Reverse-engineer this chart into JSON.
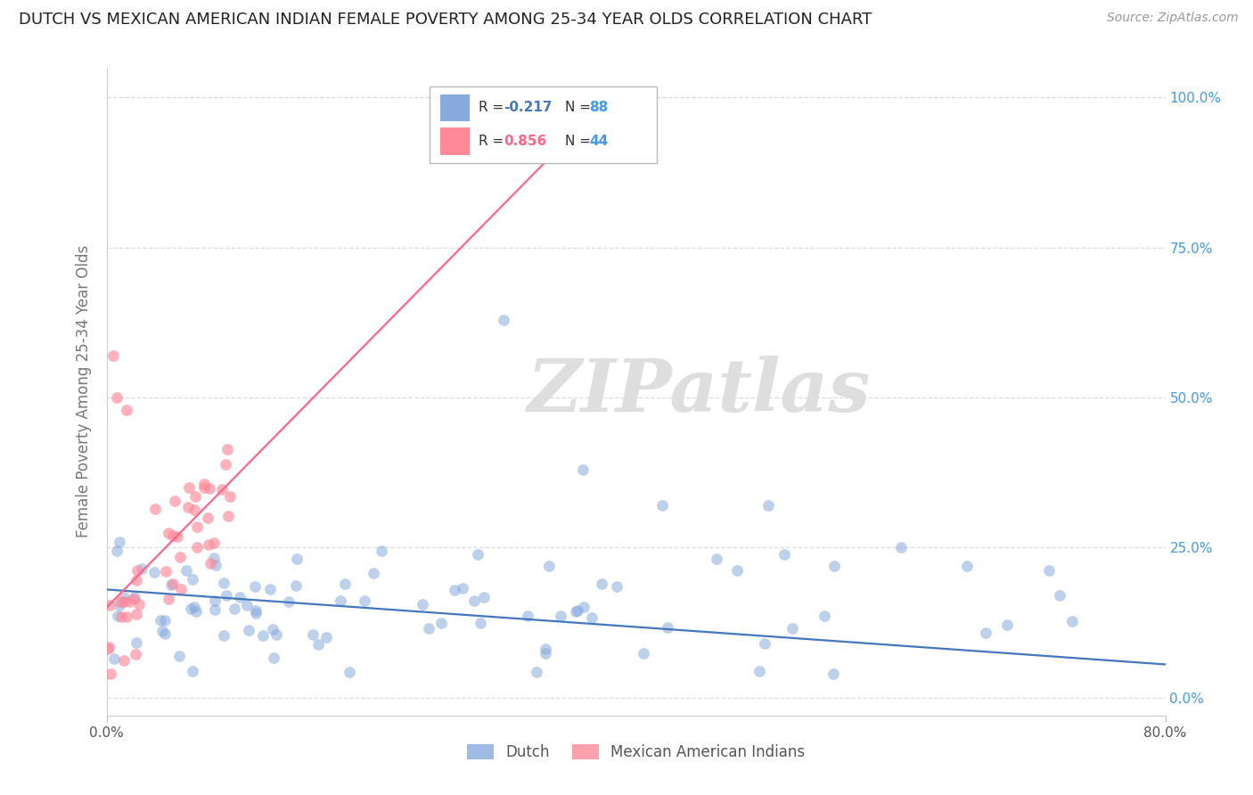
{
  "title": "DUTCH VS MEXICAN AMERICAN INDIAN FEMALE POVERTY AMONG 25-34 YEAR OLDS CORRELATION CHART",
  "source": "Source: ZipAtlas.com",
  "ylabel": "Female Poverty Among 25-34 Year Olds",
  "xmin": 0.0,
  "xmax": 0.8,
  "ymin": -0.03,
  "ymax": 1.05,
  "right_yticks": [
    0.0,
    0.25,
    0.5,
    0.75,
    1.0
  ],
  "right_yticklabels": [
    "0.0%",
    "25.0%",
    "50.0%",
    "75.0%",
    "100.0%"
  ],
  "blue_R": -0.217,
  "blue_N": 88,
  "pink_R": 0.856,
  "pink_N": 44,
  "blue_color": "#88AADD",
  "pink_color": "#FF8899",
  "blue_line_color": "#4477BB",
  "pink_line_color": "#FF6688",
  "watermark": "ZIPatlas",
  "watermark_color": "#DEDEDE",
  "background_color": "#FFFFFF",
  "grid_color": "#DDDDDD",
  "legend_label_blue": "Dutch",
  "legend_label_pink": "Mexican American Indians",
  "title_color": "#222222",
  "source_color": "#999999",
  "axis_color": "#777777",
  "right_axis_color": "#4499EE",
  "legend_N_color": "#4499EE",
  "legend_R_blue_color": "#4477BB",
  "legend_R_pink_color": "#FF6688"
}
